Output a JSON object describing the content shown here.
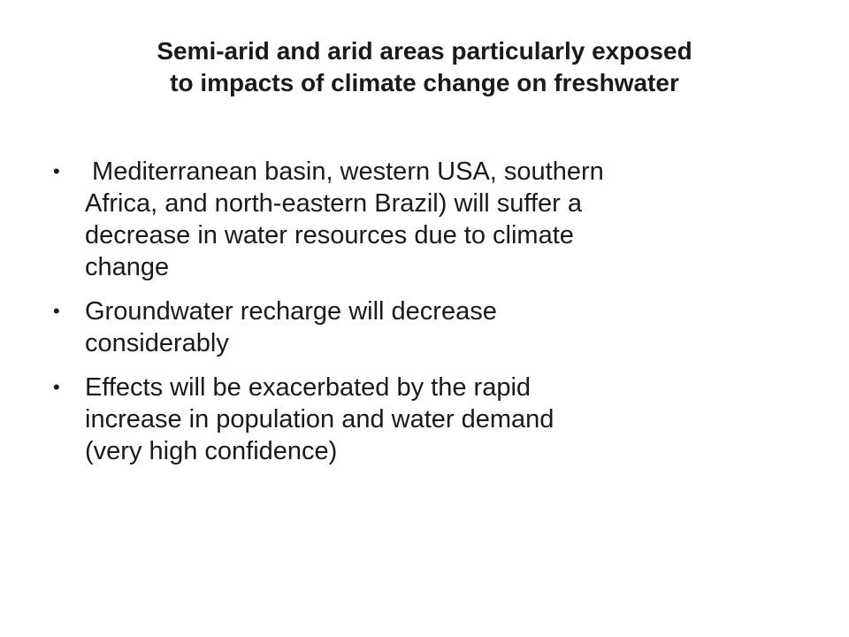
{
  "slide": {
    "title_lines": [
      "Semi-arid and arid areas particularly exposed",
      "to impacts of climate change on freshwater"
    ],
    "bullet_symbol": "•",
    "bullets": [
      {
        "lines": [
          " Mediterranean basin, western USA, southern",
          "Africa, and north-eastern Brazil) will suffer a",
          "decrease in water resources due to climate",
          "change"
        ]
      },
      {
        "lines": [
          "Groundwater recharge will decrease",
          "considerably"
        ]
      },
      {
        "lines": [
          "Effects will be exacerbated by the rapid",
          "increase in population and water demand",
          "(very high confidence)"
        ]
      }
    ]
  }
}
